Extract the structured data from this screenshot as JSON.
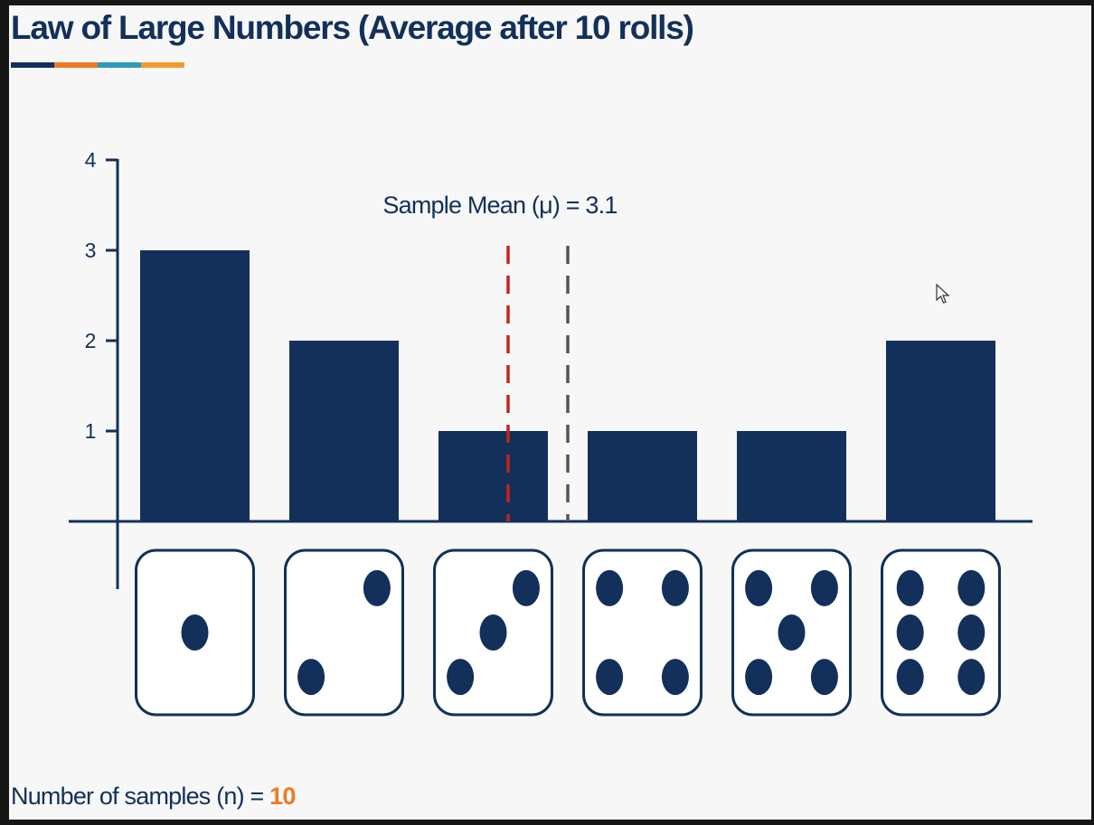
{
  "title": "Law of Large Numbers (Average after 10 rolls)",
  "title_underline_colors": [
    "#12305a",
    "#ee7b22",
    "#2b9bb8",
    "#f29a2e"
  ],
  "footer": {
    "label": "Number of samples (n) = ",
    "value": "10"
  },
  "colors": {
    "bar": "#12305a",
    "axis": "#12305a",
    "mean_line": "#c0261c",
    "expected_line": "#555555",
    "accent": "#ee7b22"
  },
  "chart_data": {
    "type": "bar",
    "categories": [
      "1",
      "2",
      "3",
      "4",
      "5",
      "6"
    ],
    "values": [
      3,
      2,
      1,
      1,
      1,
      2
    ],
    "y_ticks": [
      1,
      2,
      3,
      4
    ],
    "ylim": [
      0,
      4
    ],
    "annotation": "Sample Mean (μ) = 3.1",
    "sample_mean": 3.1,
    "expected_mean": 3.5,
    "grid": false,
    "legend": "none"
  }
}
